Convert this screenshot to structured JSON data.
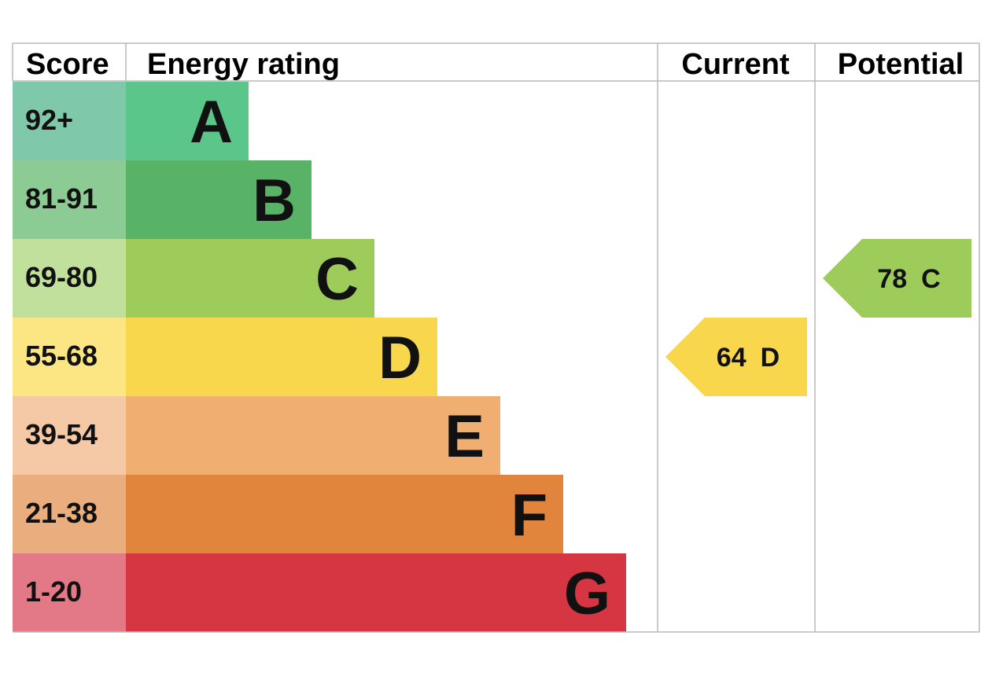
{
  "chart_data": {
    "type": "bar",
    "headers": {
      "score": "Score",
      "rating": "Energy rating",
      "current": "Current",
      "potential": "Potential"
    },
    "bands": [
      {
        "letter": "A",
        "range": "92+",
        "color": "#5bc689",
        "score_color": "#7fc8a9"
      },
      {
        "letter": "B",
        "range": "81-91",
        "color": "#58b366",
        "score_color": "#8ccb94"
      },
      {
        "letter": "C",
        "range": "69-80",
        "color": "#9dcc5a",
        "score_color": "#c1e09b"
      },
      {
        "letter": "D",
        "range": "55-68",
        "color": "#f8d74c",
        "score_color": "#fce683"
      },
      {
        "letter": "E",
        "range": "39-54",
        "color": "#f0ae71",
        "score_color": "#f5c9a5"
      },
      {
        "letter": "F",
        "range": "21-38",
        "color": "#e0853b",
        "score_color": "#e9ad7e"
      },
      {
        "letter": "G",
        "range": "1-20",
        "color": "#d63542",
        "score_color": "#e37987"
      }
    ],
    "current": {
      "score": "64",
      "letter": "D",
      "band_index": 3,
      "color": "#f8d74c"
    },
    "potential": {
      "score": "78",
      "letter": "C",
      "band_index": 2,
      "color": "#9dcc5a"
    }
  }
}
